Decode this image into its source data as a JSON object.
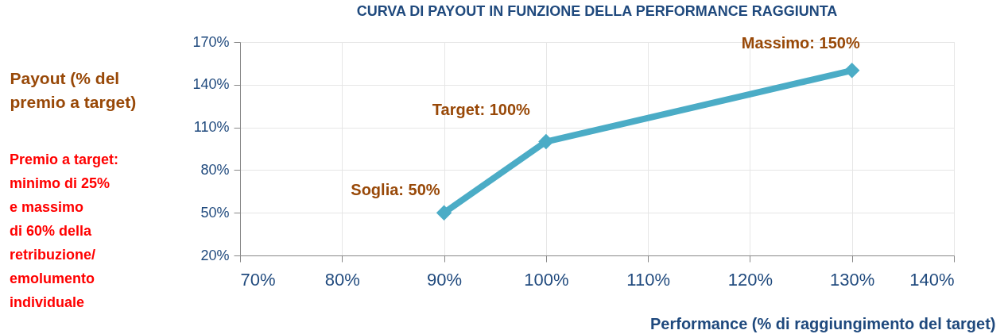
{
  "chart_data": {
    "type": "line",
    "title": "CURVA DI PAYOUT IN FUNZIONE DELLA PERFORMANCE RAGGIUNTA",
    "xlabel": "Performance (% di raggiungimento del target)",
    "ylabel": "Payout (% del\npremio a target)",
    "x": [
      90,
      100,
      130
    ],
    "series": [
      {
        "color": "#4bacc6",
        "values": [
          50,
          100,
          150
        ]
      }
    ],
    "xlim": [
      70,
      140
    ],
    "xticks": [
      {
        "value": 70,
        "label": "70%"
      },
      {
        "value": 80,
        "label": "80%"
      },
      {
        "value": 90,
        "label": "90%"
      },
      {
        "value": 100,
        "label": "100%"
      },
      {
        "value": 110,
        "label": "110%"
      },
      {
        "value": 120,
        "label": "120%"
      },
      {
        "value": 130,
        "label": "130%"
      },
      {
        "value": 140,
        "label": "140%"
      }
    ],
    "ylim": [
      20,
      170
    ],
    "yticks": [
      {
        "value": 20,
        "label": "20%"
      },
      {
        "value": 50,
        "label": "50%"
      },
      {
        "value": 80,
        "label": "80%"
      },
      {
        "value": 110,
        "label": "110%"
      },
      {
        "value": 140,
        "label": "140%"
      },
      {
        "value": 170,
        "label": "170%"
      }
    ],
    "annotations": [
      {
        "text": "Soglia: 50%",
        "x": 90,
        "y": 50
      },
      {
        "text": "Target:  100%",
        "x": 100,
        "y": 100
      },
      {
        "text": "Massimo: 150%",
        "x": 130,
        "y": 150
      },
      "Premio a target:\nminimo di 25%\ne massimo\ndi 60% della\nretribuzione/\nemolumento\nindividuale"
    ],
    "grid": true,
    "marker": "diamond",
    "line_style": "solid"
  }
}
